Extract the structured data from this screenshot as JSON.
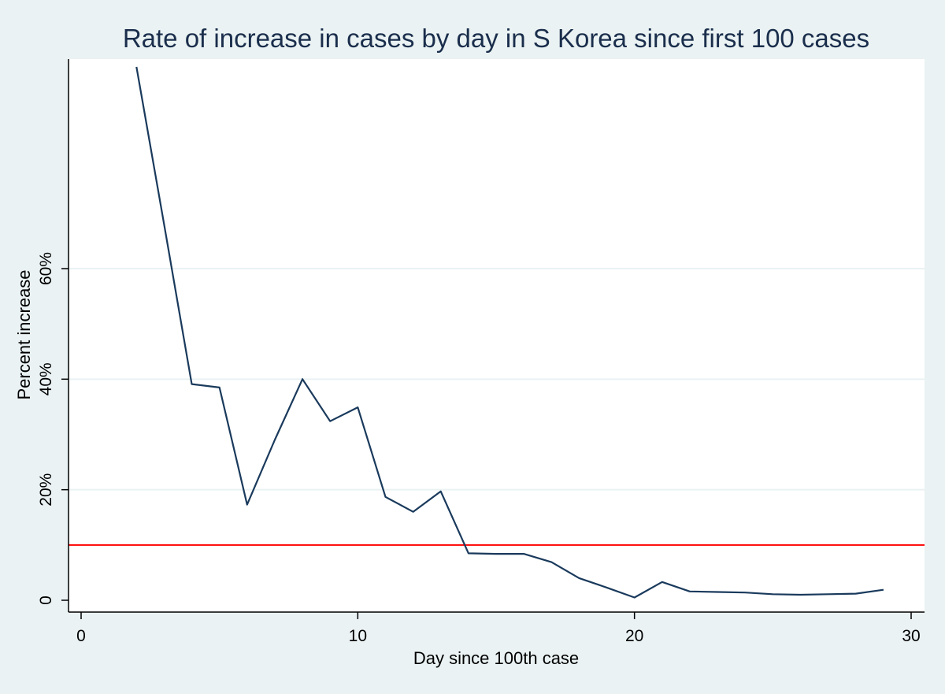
{
  "chart_data": {
    "type": "line",
    "title": "Rate of increase in cases by day in S Korea since first 100 cases",
    "xlabel": "Day since 100th case",
    "ylabel": "Percent increase",
    "xlim": [
      0,
      30
    ],
    "ylim": [
      0,
      96
    ],
    "xticks": [
      0,
      10,
      20,
      30
    ],
    "xtick_labels": [
      "0",
      "10",
      "20",
      "30"
    ],
    "yticks": [
      0,
      20,
      40,
      60
    ],
    "ytick_labels": [
      "0",
      "20%",
      "40%",
      "60%"
    ],
    "grid": true,
    "series": [
      {
        "name": "Percent increase",
        "color": "#1a3a5c",
        "x": [
          2,
          3,
          4,
          5,
          6,
          7,
          8,
          9,
          10,
          11,
          12,
          13,
          14,
          15,
          16,
          17,
          18,
          19,
          20,
          21,
          22,
          23,
          24,
          25,
          26,
          27,
          28,
          29
        ],
        "y": [
          96.5,
          68,
          39.1,
          38.5,
          17.3,
          29,
          40,
          32.4,
          34.9,
          18.7,
          16,
          19.7,
          8.5,
          8.4,
          8.4,
          6.9,
          4,
          2.3,
          0.5,
          3.3,
          1.6,
          1.5,
          1.4,
          1.1,
          1,
          1.1,
          1.2,
          1.9
        ]
      }
    ],
    "reference_line": {
      "y": 10,
      "color": "#ff0000"
    }
  }
}
